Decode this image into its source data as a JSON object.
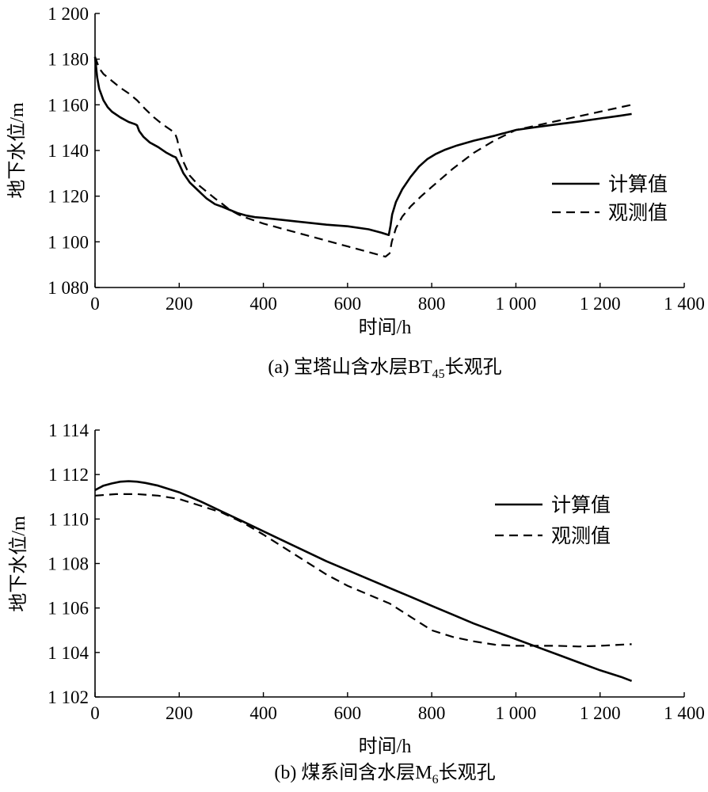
{
  "chart_data": [
    {
      "type": "line",
      "caption": {
        "prefix": "(a) 宝塔山含水层BT",
        "sub": "45",
        "suffix": "长观孔"
      },
      "xlabel": "时间/h",
      "ylabel": "地下水位/m",
      "xlim": [
        0,
        1400
      ],
      "ylim": [
        1080,
        1200
      ],
      "xticks": [
        0,
        200,
        400,
        600,
        800,
        1000,
        1200,
        1400
      ],
      "xtick_labels": [
        "0",
        "200",
        "400",
        "600",
        "800",
        "1 000",
        "1 200",
        "1 400"
      ],
      "yticks": [
        1080,
        1100,
        1120,
        1140,
        1160,
        1180,
        1200
      ],
      "ytick_labels": [
        "1 080",
        "1 100",
        "1 120",
        "1 140",
        "1 160",
        "1 180",
        "1 200"
      ],
      "grid": false,
      "legend": "right",
      "series": [
        {
          "name": "计算值",
          "color": "#000000",
          "dashed": false,
          "x": [
            0,
            5,
            10,
            20,
            30,
            40,
            60,
            80,
            95,
            100,
            105,
            115,
            130,
            150,
            170,
            185,
            192,
            200,
            210,
            225,
            245,
            265,
            285,
            300,
            320,
            340,
            360,
            380,
            400,
            450,
            500,
            550,
            600,
            650,
            680,
            698,
            702,
            706,
            715,
            730,
            750,
            770,
            790,
            810,
            830,
            860,
            900,
            950,
            1000,
            1050,
            1100,
            1150,
            1200,
            1250,
            1275
          ],
          "y": [
            1181,
            1172,
            1167,
            1162,
            1159,
            1157,
            1154.5,
            1152.5,
            1151.5,
            1151,
            1148.5,
            1146,
            1143.5,
            1141.5,
            1139,
            1137.5,
            1137,
            1134,
            1130,
            1126,
            1122.5,
            1119,
            1116.5,
            1115.5,
            1114,
            1112.5,
            1111.5,
            1110.8,
            1110.5,
            1109.5,
            1108.5,
            1107.5,
            1106.8,
            1105.5,
            1104,
            1103,
            1107,
            1112,
            1117.5,
            1123,
            1128.5,
            1133,
            1136.3,
            1138.5,
            1140.2,
            1142.2,
            1144.3,
            1146.5,
            1149,
            1150.3,
            1151.5,
            1152.7,
            1154,
            1155.3,
            1156
          ]
        },
        {
          "name": "观测值",
          "color": "#000000",
          "dashed": true,
          "x": [
            0,
            10,
            20,
            40,
            60,
            80,
            100,
            120,
            140,
            160,
            180,
            190,
            195,
            200,
            210,
            225,
            245,
            265,
            285,
            300,
            320,
            340,
            360,
            400,
            450,
            500,
            550,
            600,
            650,
            690,
            700,
            705,
            715,
            730,
            750,
            775,
            800,
            850,
            900,
            950,
            1000,
            1050,
            1100,
            1150,
            1200,
            1250,
            1275
          ],
          "y": [
            1181,
            1176,
            1173.5,
            1170.5,
            1167.5,
            1165,
            1162,
            1158,
            1154.5,
            1151.5,
            1149,
            1147.5,
            1145,
            1141,
            1135,
            1129,
            1125,
            1122,
            1119,
            1117,
            1114,
            1112,
            1110.5,
            1108,
            1105.5,
            1103,
            1100.5,
            1098,
            1095.5,
            1093.5,
            1095,
            1100,
            1106,
            1111,
            1115.5,
            1120,
            1124,
            1132,
            1139,
            1144.5,
            1149,
            1151,
            1153,
            1155,
            1157,
            1159,
            1160
          ]
        }
      ]
    },
    {
      "type": "line",
      "caption": {
        "prefix": "(b) 煤系间含水层M",
        "sub": "6",
        "suffix": "长观孔"
      },
      "xlabel": "时间/h",
      "ylabel": "地下水位/m",
      "xlim": [
        0,
        1400
      ],
      "ylim": [
        1102,
        1114
      ],
      "xticks": [
        0,
        200,
        400,
        600,
        800,
        1000,
        1200,
        1400
      ],
      "xtick_labels": [
        "0",
        "200",
        "400",
        "600",
        "800",
        "1 000",
        "1 200",
        "1 400"
      ],
      "yticks": [
        1102,
        1104,
        1106,
        1108,
        1110,
        1112,
        1114
      ],
      "ytick_labels": [
        "1 102",
        "1 104",
        "1 106",
        "1 108",
        "1 110",
        "1 112",
        "1 114"
      ],
      "grid": false,
      "legend": "right",
      "series": [
        {
          "name": "计算值",
          "color": "#000000",
          "dashed": false,
          "x": [
            0,
            20,
            40,
            60,
            80,
            100,
            120,
            150,
            200,
            250,
            300,
            350,
            400,
            450,
            500,
            550,
            600,
            650,
            700,
            750,
            800,
            850,
            900,
            950,
            1000,
            1050,
            1100,
            1150,
            1200,
            1250,
            1275
          ],
          "y": [
            1111.3,
            1111.5,
            1111.6,
            1111.68,
            1111.7,
            1111.68,
            1111.62,
            1111.5,
            1111.2,
            1110.8,
            1110.35,
            1109.9,
            1109.45,
            1109.0,
            1108.55,
            1108.1,
            1107.7,
            1107.3,
            1106.9,
            1106.5,
            1106.1,
            1105.7,
            1105.3,
            1104.95,
            1104.6,
            1104.25,
            1103.9,
            1103.55,
            1103.2,
            1102.9,
            1102.72
          ]
        },
        {
          "name": "观测值",
          "color": "#000000",
          "dashed": true,
          "x": [
            0,
            50,
            100,
            150,
            200,
            250,
            300,
            350,
            400,
            450,
            500,
            550,
            600,
            650,
            700,
            750,
            800,
            850,
            900,
            950,
            1000,
            1050,
            1100,
            1150,
            1200,
            1250,
            1275
          ],
          "y": [
            1111.05,
            1111.12,
            1111.12,
            1111.05,
            1110.9,
            1110.6,
            1110.3,
            1109.85,
            1109.3,
            1108.7,
            1108.1,
            1107.5,
            1107.0,
            1106.6,
            1106.2,
            1105.6,
            1105.0,
            1104.7,
            1104.5,
            1104.35,
            1104.3,
            1104.3,
            1104.3,
            1104.27,
            1104.3,
            1104.35,
            1104.37
          ]
        }
      ]
    }
  ]
}
